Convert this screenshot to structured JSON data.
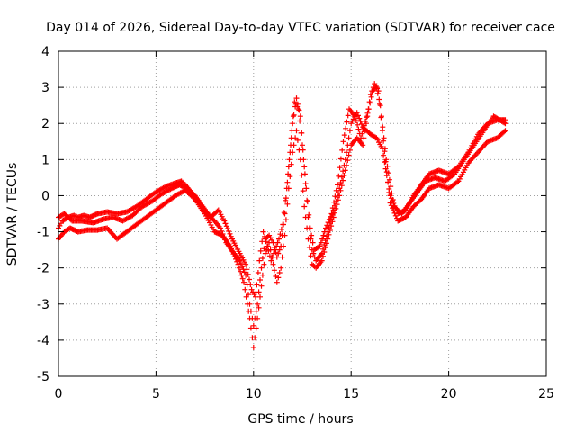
{
  "chart_data": {
    "type": "scatter",
    "title": "Day 014 of 2026, Sidereal Day-to-day VTEC variation (SDTVAR) for receiver cace",
    "xlabel": "GPS time / hours",
    "ylabel": "SDTVAR / TECUs",
    "xlim": [
      0,
      25
    ],
    "ylim": [
      -5,
      4
    ],
    "xticks": [
      0,
      5,
      10,
      15,
      20,
      25
    ],
    "yticks": [
      -5,
      -4,
      -3,
      -2,
      -1,
      0,
      1,
      2,
      3,
      4
    ],
    "grid": true,
    "marker": "+",
    "color": "#ff0000",
    "series": [
      {
        "values": [
          [
            0.0,
            -0.9
          ],
          [
            0.2,
            -0.7
          ],
          [
            0.5,
            -0.6
          ],
          [
            0.8,
            -0.55
          ],
          [
            1.0,
            -0.6
          ],
          [
            1.3,
            -0.55
          ],
          [
            1.6,
            -0.6
          ],
          [
            2.0,
            -0.5
          ],
          [
            2.5,
            -0.45
          ],
          [
            3.0,
            -0.5
          ],
          [
            3.5,
            -0.45
          ],
          [
            4.0,
            -0.3
          ],
          [
            4.5,
            -0.1
          ],
          [
            5.0,
            0.1
          ],
          [
            5.5,
            0.25
          ],
          [
            6.0,
            0.35
          ],
          [
            6.3,
            0.4
          ],
          [
            6.5,
            0.3
          ],
          [
            6.8,
            0.1
          ],
          [
            7.2,
            -0.2
          ],
          [
            7.6,
            -0.5
          ],
          [
            8.0,
            -0.7
          ],
          [
            8.3,
            -0.9
          ],
          [
            8.6,
            -1.3
          ],
          [
            9.0,
            -1.6
          ],
          [
            9.3,
            -1.8
          ],
          [
            9.6,
            -2.2
          ],
          [
            9.8,
            -3.0
          ],
          [
            10.0,
            -3.6
          ],
          [
            10.2,
            -3.0
          ],
          [
            10.4,
            -2.0
          ],
          [
            10.6,
            -1.2
          ],
          [
            10.8,
            -1.1
          ],
          [
            11.0,
            -1.3
          ],
          [
            11.2,
            -1.7
          ],
          [
            11.4,
            -1.4
          ],
          [
            11.6,
            -0.5
          ],
          [
            11.8,
            0.8
          ],
          [
            12.0,
            2.0
          ],
          [
            12.2,
            2.7
          ],
          [
            12.4,
            2.2
          ],
          [
            12.6,
            0.8
          ],
          [
            12.8,
            -0.6
          ],
          [
            13.0,
            -1.5
          ],
          [
            13.2,
            -1.8
          ],
          [
            13.5,
            -1.6
          ],
          [
            13.8,
            -1.0
          ],
          [
            14.1,
            -0.4
          ],
          [
            14.4,
            0.2
          ],
          [
            14.7,
            1.0
          ],
          [
            15.0,
            2.0
          ],
          [
            15.3,
            2.3
          ],
          [
            15.6,
            1.9
          ],
          [
            16.0,
            1.7
          ],
          [
            16.3,
            1.6
          ],
          [
            16.6,
            1.3
          ],
          [
            17.0,
            0.0
          ],
          [
            17.4,
            -0.5
          ],
          [
            17.8,
            -0.4
          ],
          [
            18.2,
            0.0
          ],
          [
            18.6,
            0.3
          ],
          [
            19.0,
            0.6
          ],
          [
            19.5,
            0.7
          ],
          [
            20.0,
            0.6
          ],
          [
            20.5,
            0.8
          ],
          [
            21.0,
            1.2
          ],
          [
            21.5,
            1.7
          ],
          [
            22.0,
            2.0
          ],
          [
            22.5,
            2.1
          ],
          [
            22.9,
            2.1
          ]
        ]
      },
      {
        "values": [
          [
            0.0,
            -1.2
          ],
          [
            0.3,
            -1.0
          ],
          [
            0.6,
            -0.9
          ],
          [
            1.0,
            -1.0
          ],
          [
            1.5,
            -0.95
          ],
          [
            2.0,
            -0.95
          ],
          [
            2.5,
            -0.9
          ],
          [
            3.0,
            -1.2
          ],
          [
            3.5,
            -1.0
          ],
          [
            4.0,
            -0.8
          ],
          [
            4.5,
            -0.6
          ],
          [
            5.0,
            -0.4
          ],
          [
            5.5,
            -0.2
          ],
          [
            6.0,
            0.0
          ],
          [
            6.5,
            0.15
          ],
          [
            7.0,
            -0.1
          ],
          [
            7.5,
            -0.5
          ],
          [
            8.0,
            -1.0
          ],
          [
            8.4,
            -1.1
          ],
          [
            8.8,
            -1.4
          ],
          [
            9.2,
            -1.9
          ],
          [
            9.5,
            -2.4
          ],
          [
            9.8,
            -3.4
          ],
          [
            10.0,
            -4.2
          ],
          [
            10.2,
            -3.4
          ],
          [
            10.4,
            -2.5
          ],
          [
            10.6,
            -1.6
          ],
          [
            10.8,
            -1.3
          ],
          [
            11.0,
            -1.9
          ],
          [
            11.2,
            -2.4
          ],
          [
            11.4,
            -2.0
          ],
          [
            11.6,
            -1.1
          ],
          [
            11.8,
            0.2
          ],
          [
            12.0,
            1.2
          ],
          [
            12.2,
            1.8
          ],
          [
            12.4,
            1.0
          ],
          [
            12.6,
            -0.3
          ],
          [
            12.8,
            -1.2
          ],
          [
            13.0,
            -1.9
          ],
          [
            13.2,
            -2.0
          ],
          [
            13.5,
            -1.8
          ],
          [
            13.8,
            -1.2
          ],
          [
            14.1,
            -0.6
          ],
          [
            14.4,
            0.0
          ],
          [
            14.7,
            0.7
          ],
          [
            15.0,
            1.4
          ],
          [
            15.3,
            1.6
          ],
          [
            15.6,
            1.4
          ],
          [
            16.0,
            2.8
          ],
          [
            16.2,
            3.1
          ],
          [
            16.4,
            2.9
          ],
          [
            16.6,
            1.8
          ],
          [
            17.0,
            -0.2
          ],
          [
            17.4,
            -0.7
          ],
          [
            17.8,
            -0.6
          ],
          [
            18.2,
            -0.3
          ],
          [
            18.6,
            -0.1
          ],
          [
            19.0,
            0.2
          ],
          [
            19.5,
            0.3
          ],
          [
            20.0,
            0.2
          ],
          [
            20.5,
            0.4
          ],
          [
            21.0,
            0.9
          ],
          [
            21.5,
            1.2
          ],
          [
            22.0,
            1.5
          ],
          [
            22.5,
            1.6
          ],
          [
            22.9,
            1.8
          ]
        ]
      },
      {
        "values": [
          [
            0.0,
            -0.6
          ],
          [
            0.3,
            -0.5
          ],
          [
            0.7,
            -0.7
          ],
          [
            1.2,
            -0.7
          ],
          [
            1.8,
            -0.75
          ],
          [
            2.3,
            -0.65
          ],
          [
            2.8,
            -0.6
          ],
          [
            3.3,
            -0.7
          ],
          [
            3.8,
            -0.55
          ],
          [
            4.3,
            -0.3
          ],
          [
            4.8,
            -0.15
          ],
          [
            5.3,
            0.05
          ],
          [
            5.8,
            0.2
          ],
          [
            6.2,
            0.3
          ],
          [
            6.6,
            0.2
          ],
          [
            7.0,
            0.0
          ],
          [
            7.4,
            -0.3
          ],
          [
            7.8,
            -0.6
          ],
          [
            8.2,
            -0.4
          ],
          [
            8.5,
            -0.7
          ],
          [
            8.9,
            -1.2
          ],
          [
            9.3,
            -1.6
          ],
          [
            9.6,
            -1.9
          ],
          [
            9.9,
            -2.6
          ],
          [
            10.1,
            -2.8
          ],
          [
            10.3,
            -1.8
          ],
          [
            10.5,
            -1.0
          ],
          [
            10.7,
            -1.4
          ],
          [
            10.9,
            -1.8
          ],
          [
            11.1,
            -1.5
          ],
          [
            11.3,
            -1.2
          ],
          [
            11.5,
            -0.8
          ],
          [
            11.7,
            0.2
          ],
          [
            11.9,
            1.4
          ],
          [
            12.1,
            2.6
          ],
          [
            12.3,
            2.4
          ],
          [
            12.5,
            1.4
          ],
          [
            12.7,
            0.2
          ],
          [
            12.9,
            -0.9
          ],
          [
            13.1,
            -1.5
          ],
          [
            13.4,
            -1.4
          ],
          [
            13.7,
            -0.9
          ],
          [
            14.0,
            -0.5
          ],
          [
            14.3,
            0.3
          ],
          [
            14.6,
            1.5
          ],
          [
            14.9,
            2.4
          ],
          [
            15.2,
            2.2
          ],
          [
            15.5,
            1.6
          ],
          [
            15.9,
            2.4
          ],
          [
            16.1,
            2.9
          ],
          [
            16.3,
            3.0
          ],
          [
            16.5,
            2.5
          ],
          [
            16.8,
            1.0
          ],
          [
            17.2,
            -0.3
          ],
          [
            17.6,
            -0.5
          ],
          [
            18.0,
            -0.2
          ],
          [
            18.4,
            0.1
          ],
          [
            18.8,
            0.4
          ],
          [
            19.3,
            0.5
          ],
          [
            19.8,
            0.4
          ],
          [
            20.3,
            0.6
          ],
          [
            20.8,
            1.0
          ],
          [
            21.3,
            1.4
          ],
          [
            21.8,
            1.8
          ],
          [
            22.3,
            2.2
          ],
          [
            22.9,
            2.0
          ]
        ]
      }
    ]
  }
}
